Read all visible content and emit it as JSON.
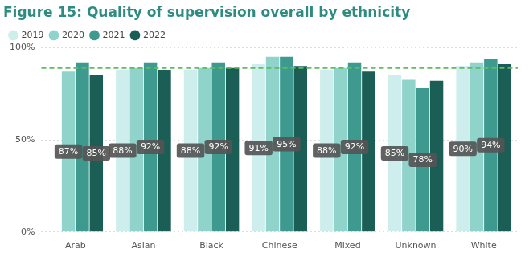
{
  "chart_data": {
    "type": "bar",
    "title": "Figure 15: Quality of supervision overall by ethnicity",
    "categories": [
      "Arab",
      "Asian",
      "Black",
      "Chinese",
      "Mixed",
      "Unknown",
      "White"
    ],
    "series": [
      {
        "name": "2019",
        "color": "#cdeeec",
        "values": [
          null,
          88,
          88,
          91,
          88,
          85,
          90
        ],
        "value_labels": [
          null,
          "88%",
          "88%",
          "91%",
          "88%",
          "85%",
          "90%"
        ]
      },
      {
        "name": "2020",
        "color": "#8fd3cb",
        "values": [
          87,
          89,
          89,
          95,
          89,
          83,
          92
        ],
        "value_labels": [
          "87%",
          null,
          null,
          null,
          null,
          null,
          null
        ]
      },
      {
        "name": "2021",
        "color": "#3e9a8e",
        "values": [
          92,
          92,
          92,
          95,
          92,
          78,
          94
        ],
        "value_labels": [
          null,
          "92%",
          "92%",
          "95%",
          "92%",
          "78%",
          "94%"
        ]
      },
      {
        "name": "2022",
        "color": "#1a5e55",
        "values": [
          85,
          88,
          89,
          90,
          87,
          82,
          91
        ],
        "value_labels": [
          "85%",
          null,
          null,
          null,
          null,
          null,
          null
        ]
      }
    ],
    "reference_line": 89,
    "ylim": [
      0,
      100
    ],
    "yticks": [
      {
        "value": 0,
        "label": "0%"
      },
      {
        "value": 50,
        "label": "50%"
      },
      {
        "value": 100,
        "label": "100%"
      }
    ],
    "grid": true,
    "legend": "top-left",
    "data_labels": true
  }
}
